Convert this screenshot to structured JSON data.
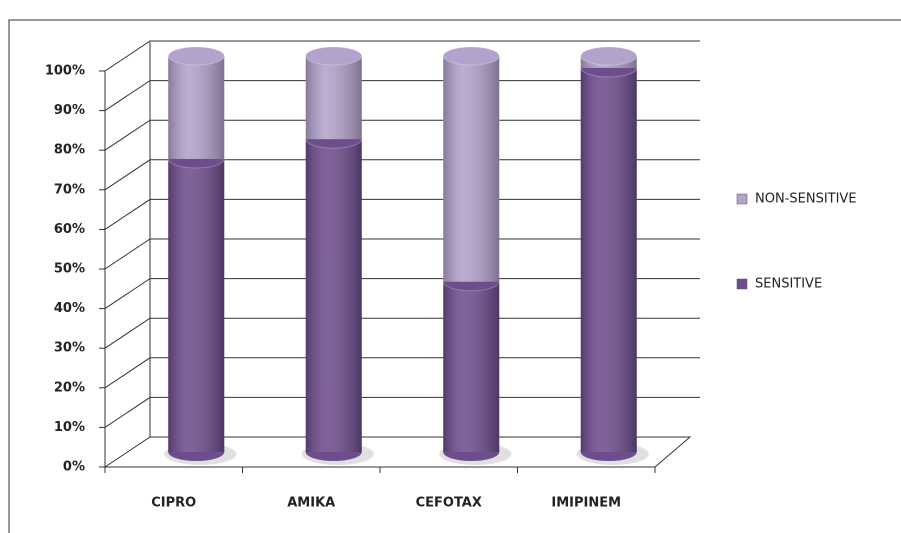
{
  "chart_data": {
    "type": "bar",
    "stacked": true,
    "categories": [
      "CIPRO",
      "AMIKA",
      "CEFOTAX",
      "IMIPINEM"
    ],
    "series": [
      {
        "name": "SENSITIVE",
        "color": "#6e4d8e",
        "values": [
          74,
          79,
          43,
          97
        ]
      },
      {
        "name": "NON-SENSITIVE",
        "color": "#b3a2cb",
        "values": [
          26,
          21,
          57,
          3
        ]
      }
    ],
    "ylim": [
      0,
      100
    ],
    "yticks": [
      {
        "value": 0,
        "label": "0%"
      },
      {
        "value": 10,
        "label": "10%"
      },
      {
        "value": 20,
        "label": "20%"
      },
      {
        "value": 30,
        "label": "30%"
      },
      {
        "value": 40,
        "label": "40%"
      },
      {
        "value": 50,
        "label": "50%"
      },
      {
        "value": 60,
        "label": "60%"
      },
      {
        "value": 70,
        "label": "70%"
      },
      {
        "value": 80,
        "label": "80%"
      },
      {
        "value": 90,
        "label": "90%"
      },
      {
        "value": 100,
        "label": "100%"
      }
    ],
    "grid": true,
    "legend": "right"
  }
}
